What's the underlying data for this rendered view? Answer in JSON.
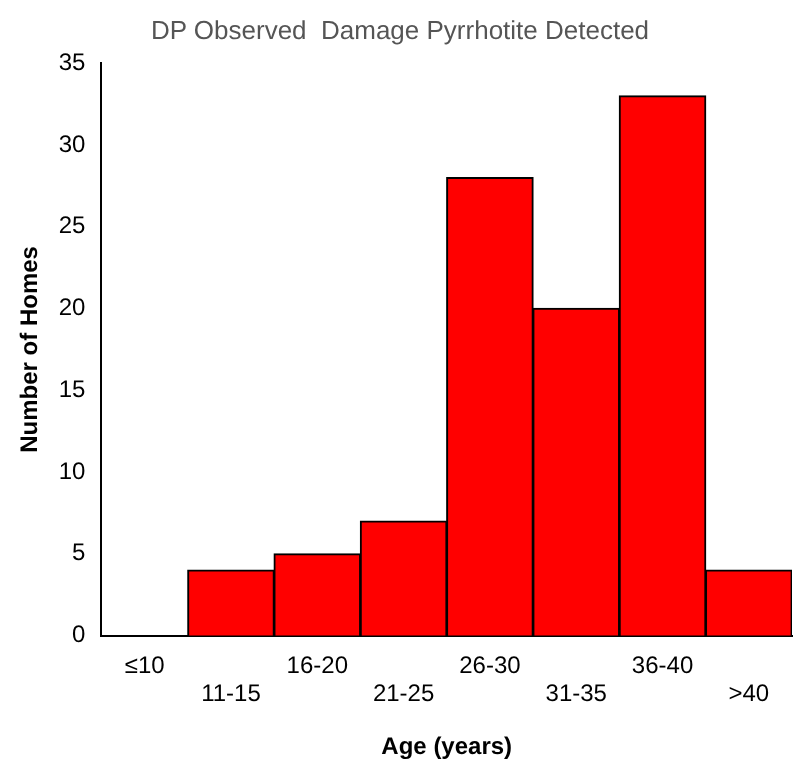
{
  "chart_data": {
    "type": "bar",
    "title": "DP Observed  Damage Pyrrhotite Detected",
    "xlabel": "Age (years)",
    "ylabel": "Number of Homes",
    "categories": [
      "≤10",
      "11-15",
      "16-20",
      "21-25",
      "26-30",
      "31-35",
      "36-40",
      ">40"
    ],
    "values": [
      0,
      4,
      5,
      7,
      28,
      20,
      33,
      4
    ],
    "color": "#ff0000",
    "ylim": [
      0,
      35
    ],
    "yticks": [
      0,
      5,
      10,
      15,
      20,
      25,
      30,
      35
    ],
    "grid": false,
    "legend": false
  }
}
